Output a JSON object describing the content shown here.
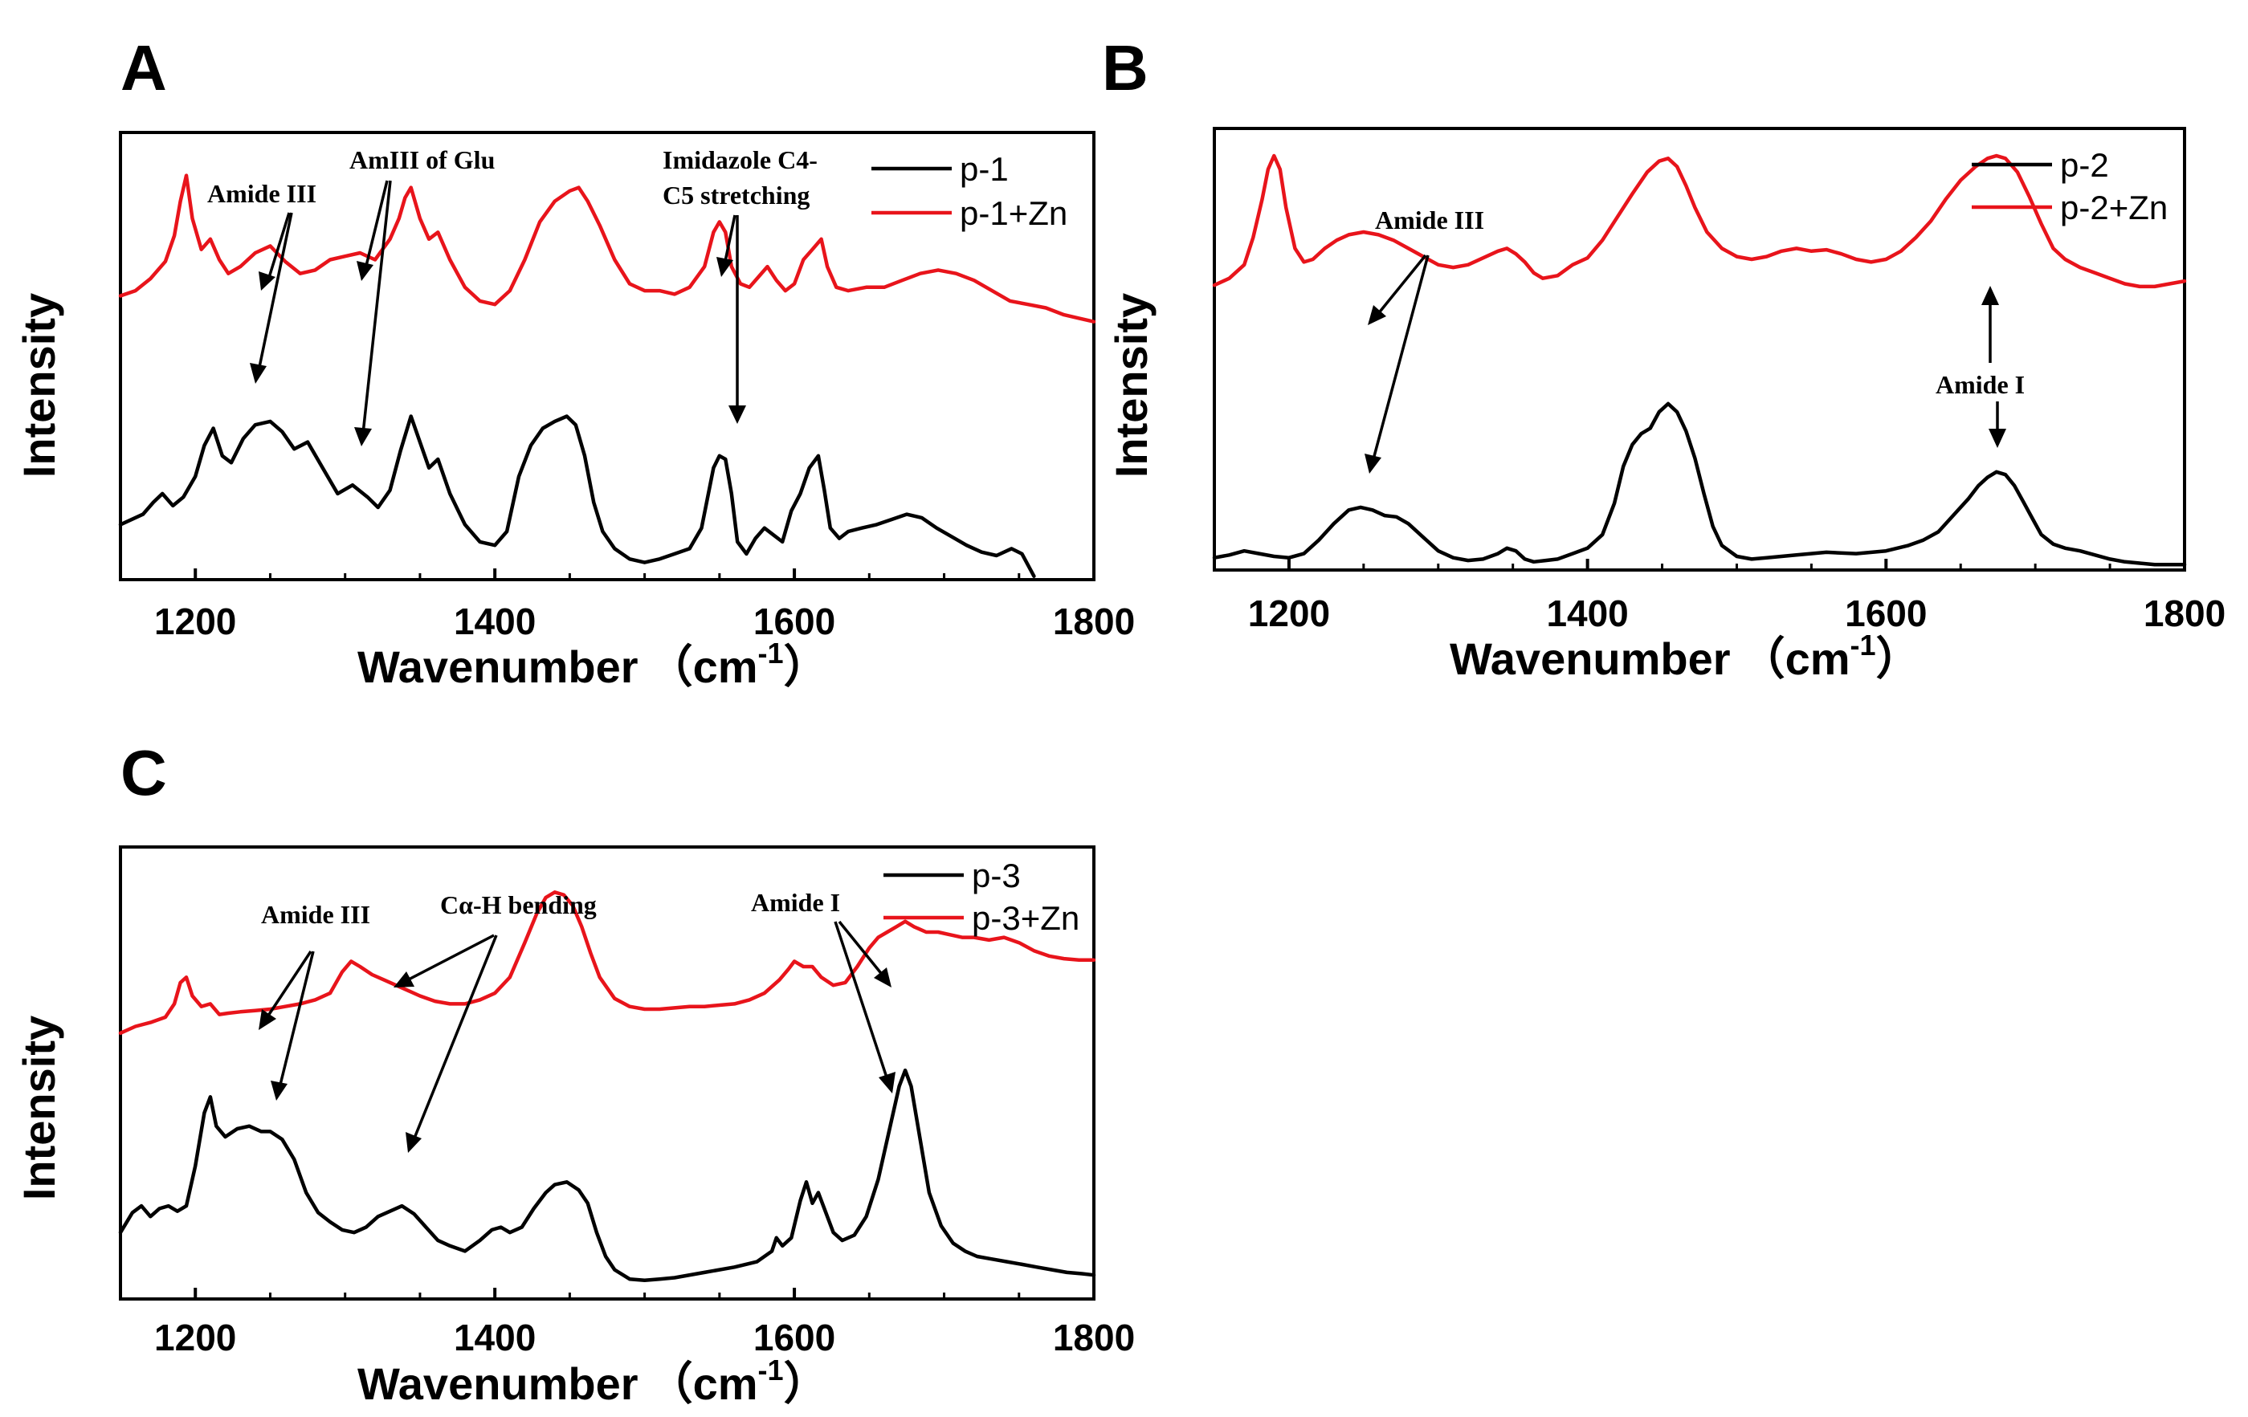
{
  "colors": {
    "black_series": "#000000",
    "red_series": "#e8141b"
  },
  "chart_data": [
    {
      "type": "line",
      "panel": "A",
      "xlabel": "Wavenumber",
      "xlabel_unit": "（cm",
      "xlabel_sup": "-1",
      "xlabel_close": "）",
      "ylabel": "Intensity",
      "xlim": [
        1150,
        1800
      ],
      "xticks": [
        1200,
        1400,
        1600,
        1800
      ],
      "yticks_shown": false,
      "legend_position": "top-right",
      "series": [
        {
          "name": "p-1",
          "color": "#000000",
          "x": [
            1150,
            1165,
            1172,
            1178,
            1185,
            1192,
            1200,
            1206,
            1212,
            1218,
            1224,
            1232,
            1240,
            1250,
            1258,
            1266,
            1275,
            1285,
            1295,
            1305,
            1315,
            1322,
            1330,
            1337,
            1344,
            1350,
            1356,
            1362,
            1370,
            1380,
            1390,
            1400,
            1408,
            1416,
            1424,
            1432,
            1440,
            1448,
            1454,
            1460,
            1466,
            1472,
            1480,
            1490,
            1500,
            1510,
            1520,
            1530,
            1538,
            1546,
            1550,
            1554,
            1558,
            1562,
            1568,
            1574,
            1580,
            1586,
            1592,
            1598,
            1604,
            1610,
            1616,
            1620,
            1624,
            1630,
            1636,
            1645,
            1655,
            1665,
            1675,
            1685,
            1695,
            1705,
            1715,
            1725,
            1735,
            1745,
            1752,
            1760
          ],
          "y": [
            22,
            28,
            35,
            40,
            33,
            38,
            50,
            68,
            78,
            62,
            58,
            72,
            80,
            82,
            76,
            66,
            70,
            55,
            40,
            45,
            38,
            32,
            42,
            65,
            85,
            70,
            55,
            60,
            40,
            22,
            12,
            10,
            18,
            50,
            68,
            78,
            82,
            85,
            80,
            62,
            35,
            18,
            8,
            2,
            0,
            2,
            5,
            8,
            20,
            55,
            62,
            60,
            40,
            12,
            5,
            14,
            20,
            16,
            12,
            30,
            40,
            55,
            62,
            42,
            20,
            14,
            18,
            20,
            22,
            25,
            28,
            26,
            20,
            15,
            10,
            6,
            4,
            8,
            5,
            -8
          ]
        },
        {
          "name": "p-1+Zn",
          "color": "#e8141b",
          "x": [
            1150,
            1160,
            1170,
            1180,
            1186,
            1190,
            1194,
            1198,
            1204,
            1210,
            1216,
            1222,
            1230,
            1240,
            1250,
            1260,
            1270,
            1280,
            1290,
            1300,
            1310,
            1320,
            1330,
            1336,
            1340,
            1344,
            1350,
            1356,
            1362,
            1370,
            1380,
            1390,
            1400,
            1410,
            1420,
            1430,
            1440,
            1450,
            1456,
            1462,
            1470,
            1480,
            1490,
            1500,
            1510,
            1520,
            1530,
            1540,
            1546,
            1550,
            1554,
            1558,
            1564,
            1570,
            1576,
            1582,
            1588,
            1594,
            1600,
            1606,
            1612,
            1618,
            1622,
            1628,
            1636,
            1648,
            1660,
            1672,
            1684,
            1696,
            1708,
            1720,
            1732,
            1744,
            1756,
            1768,
            1780,
            1790,
            1800
          ],
          "y": [
            155,
            158,
            165,
            175,
            190,
            210,
            225,
            200,
            182,
            188,
            176,
            168,
            172,
            180,
            184,
            175,
            168,
            170,
            176,
            178,
            180,
            176,
            188,
            200,
            212,
            218,
            200,
            188,
            192,
            176,
            160,
            152,
            150,
            158,
            176,
            198,
            210,
            216,
            218,
            210,
            196,
            176,
            162,
            158,
            158,
            156,
            160,
            172,
            192,
            198,
            192,
            172,
            162,
            160,
            166,
            172,
            164,
            158,
            162,
            176,
            182,
            188,
            172,
            160,
            158,
            160,
            160,
            164,
            168,
            170,
            168,
            164,
            158,
            152,
            150,
            148,
            144,
            142,
            140
          ]
        }
      ],
      "annotations": [
        {
          "text": "Amide III",
          "lines": [
            "Amide III"
          ]
        },
        {
          "text": "AmIII of Glu",
          "lines": [
            "AmIII of Glu"
          ]
        },
        {
          "text": "Imidazole C4-C5 stretching",
          "lines": [
            "Imidazole C4-",
            "C5 stretching"
          ]
        }
      ]
    },
    {
      "type": "line",
      "panel": "B",
      "xlabel": "Wavenumber",
      "xlabel_unit": "（cm",
      "xlabel_sup": "-1",
      "xlabel_close": "）",
      "ylabel": "Intensity",
      "xlim": [
        1150,
        1800
      ],
      "xticks": [
        1200,
        1400,
        1600,
        1800
      ],
      "yticks_shown": false,
      "legend_position": "top-right",
      "series": [
        {
          "name": "p-2",
          "color": "#000000",
          "x": [
            1150,
            1160,
            1170,
            1180,
            1190,
            1200,
            1210,
            1220,
            1230,
            1240,
            1248,
            1256,
            1264,
            1272,
            1280,
            1290,
            1300,
            1310,
            1320,
            1330,
            1340,
            1346,
            1352,
            1358,
            1364,
            1372,
            1380,
            1390,
            1400,
            1410,
            1418,
            1424,
            1430,
            1436,
            1442,
            1448,
            1454,
            1460,
            1466,
            1472,
            1478,
            1484,
            1490,
            1500,
            1510,
            1520,
            1540,
            1560,
            1580,
            1600,
            1615,
            1625,
            1635,
            1645,
            1655,
            1662,
            1668,
            1674,
            1680,
            1686,
            1692,
            1698,
            1704,
            1712,
            1720,
            1730,
            1740,
            1750,
            1760,
            1770,
            1780,
            1790,
            1800
          ],
          "y": [
            5,
            7,
            10,
            8,
            6,
            5,
            8,
            18,
            30,
            40,
            42,
            40,
            36,
            35,
            30,
            20,
            10,
            5,
            3,
            4,
            8,
            12,
            10,
            4,
            2,
            3,
            4,
            8,
            12,
            22,
            45,
            72,
            88,
            96,
            100,
            112,
            118,
            112,
            98,
            78,
            52,
            28,
            14,
            6,
            4,
            5,
            7,
            9,
            8,
            10,
            14,
            18,
            24,
            36,
            48,
            58,
            64,
            68,
            66,
            58,
            46,
            34,
            22,
            15,
            12,
            10,
            7,
            4,
            2,
            1,
            0,
            0,
            0
          ]
        },
        {
          "name": "p-2+Zn",
          "color": "#e8141b",
          "x": [
            1150,
            1160,
            1170,
            1176,
            1182,
            1186,
            1190,
            1194,
            1198,
            1204,
            1210,
            1216,
            1224,
            1232,
            1240,
            1250,
            1260,
            1270,
            1280,
            1290,
            1300,
            1310,
            1320,
            1330,
            1340,
            1346,
            1352,
            1358,
            1364,
            1370,
            1380,
            1390,
            1400,
            1410,
            1420,
            1430,
            1440,
            1448,
            1454,
            1460,
            1466,
            1472,
            1480,
            1490,
            1500,
            1510,
            1520,
            1530,
            1540,
            1550,
            1560,
            1570,
            1580,
            1590,
            1600,
            1610,
            1620,
            1630,
            1640,
            1650,
            1660,
            1668,
            1674,
            1680,
            1688,
            1696,
            1704,
            1712,
            1720,
            1730,
            1740,
            1750,
            1760,
            1770,
            1780,
            1790,
            1800
          ],
          "y": [
            205,
            210,
            220,
            240,
            268,
            290,
            300,
            290,
            262,
            232,
            222,
            224,
            232,
            238,
            242,
            244,
            242,
            238,
            232,
            226,
            220,
            218,
            220,
            225,
            230,
            232,
            228,
            222,
            214,
            210,
            212,
            220,
            225,
            238,
            255,
            272,
            288,
            296,
            298,
            292,
            278,
            262,
            244,
            232,
            226,
            224,
            226,
            230,
            232,
            230,
            231,
            228,
            224,
            222,
            224,
            230,
            240,
            252,
            268,
            282,
            292,
            298,
            300,
            298,
            288,
            270,
            250,
            232,
            224,
            218,
            214,
            210,
            206,
            204,
            204,
            206,
            208
          ]
        }
      ],
      "annotations": [
        {
          "text": "Amide III",
          "lines": [
            "Amide III"
          ]
        },
        {
          "text": "Amide I",
          "lines": [
            "Amide I"
          ]
        }
      ]
    },
    {
      "type": "line",
      "panel": "C",
      "xlabel": "Wavenumber",
      "xlabel_unit": "（cm",
      "xlabel_sup": "-1",
      "xlabel_close": "）",
      "ylabel": "Intensity",
      "xlim": [
        1150,
        1800
      ],
      "xticks": [
        1200,
        1400,
        1600,
        1800
      ],
      "yticks_shown": false,
      "legend_position": "top-right",
      "series": [
        {
          "name": "p-3",
          "color": "#000000",
          "x": [
            1150,
            1158,
            1164,
            1170,
            1176,
            1182,
            1188,
            1194,
            1200,
            1206,
            1210,
            1214,
            1220,
            1228,
            1236,
            1244,
            1250,
            1258,
            1266,
            1274,
            1282,
            1290,
            1298,
            1306,
            1314,
            1322,
            1330,
            1338,
            1346,
            1354,
            1362,
            1370,
            1380,
            1390,
            1398,
            1404,
            1410,
            1418,
            1426,
            1434,
            1440,
            1448,
            1456,
            1462,
            1468,
            1474,
            1480,
            1490,
            1500,
            1510,
            1520,
            1540,
            1560,
            1575,
            1585,
            1588,
            1592,
            1598,
            1604,
            1608,
            1612,
            1616,
            1620,
            1626,
            1632,
            1640,
            1648,
            1656,
            1664,
            1670,
            1674,
            1678,
            1684,
            1690,
            1698,
            1706,
            1714,
            1722,
            1732,
            1742,
            1752,
            1762,
            1772,
            1782,
            1792,
            1800
          ],
          "y": [
            40,
            55,
            60,
            52,
            58,
            60,
            56,
            60,
            90,
            130,
            142,
            120,
            112,
            118,
            120,
            116,
            116,
            110,
            95,
            70,
            55,
            48,
            42,
            40,
            44,
            52,
            56,
            60,
            54,
            44,
            34,
            30,
            26,
            34,
            42,
            44,
            40,
            44,
            58,
            70,
            76,
            78,
            72,
            62,
            40,
            22,
            12,
            5,
            4,
            5,
            6,
            10,
            14,
            18,
            26,
            36,
            30,
            36,
            64,
            78,
            62,
            70,
            58,
            40,
            34,
            38,
            52,
            80,
            120,
            150,
            162,
            150,
            110,
            70,
            45,
            32,
            26,
            22,
            20,
            18,
            16,
            14,
            12,
            10,
            9,
            8
          ]
        },
        {
          "name": "p-3+Zn",
          "color": "#e8141b",
          "x": [
            1150,
            1160,
            1170,
            1180,
            1186,
            1190,
            1194,
            1198,
            1204,
            1210,
            1216,
            1222,
            1230,
            1240,
            1250,
            1260,
            1270,
            1280,
            1290,
            1298,
            1304,
            1310,
            1318,
            1326,
            1334,
            1342,
            1350,
            1360,
            1370,
            1380,
            1390,
            1400,
            1410,
            1420,
            1428,
            1434,
            1440,
            1446,
            1452,
            1458,
            1464,
            1470,
            1480,
            1490,
            1500,
            1510,
            1520,
            1530,
            1540,
            1550,
            1560,
            1570,
            1580,
            1590,
            1596,
            1600,
            1606,
            1612,
            1618,
            1626,
            1634,
            1642,
            1650,
            1656,
            1662,
            1668,
            1674,
            1680,
            1688,
            1696,
            1704,
            1712,
            1720,
            1730,
            1740,
            1750,
            1760,
            1770,
            1780,
            1790,
            1800
          ],
          "y": [
            190,
            195,
            198,
            202,
            212,
            228,
            232,
            218,
            210,
            212,
            204,
            205,
            206,
            207,
            208,
            210,
            212,
            215,
            220,
            236,
            244,
            240,
            234,
            230,
            226,
            222,
            218,
            214,
            212,
            212,
            215,
            220,
            232,
            258,
            280,
            292,
            296,
            294,
            286,
            270,
            250,
            232,
            216,
            210,
            208,
            208,
            209,
            210,
            210,
            211,
            212,
            215,
            220,
            230,
            238,
            244,
            240,
            240,
            232,
            226,
            228,
            240,
            254,
            262,
            266,
            270,
            274,
            270,
            266,
            266,
            264,
            262,
            262,
            260,
            262,
            258,
            252,
            248,
            246,
            245,
            245
          ]
        }
      ],
      "annotations": [
        {
          "text": "Amide III",
          "lines": [
            "Amide III"
          ]
        },
        {
          "text": "Cα-H bending",
          "lines": [
            "Cα-H bending"
          ]
        },
        {
          "text": "Amide I",
          "lines": [
            "Amide I"
          ]
        }
      ]
    }
  ]
}
